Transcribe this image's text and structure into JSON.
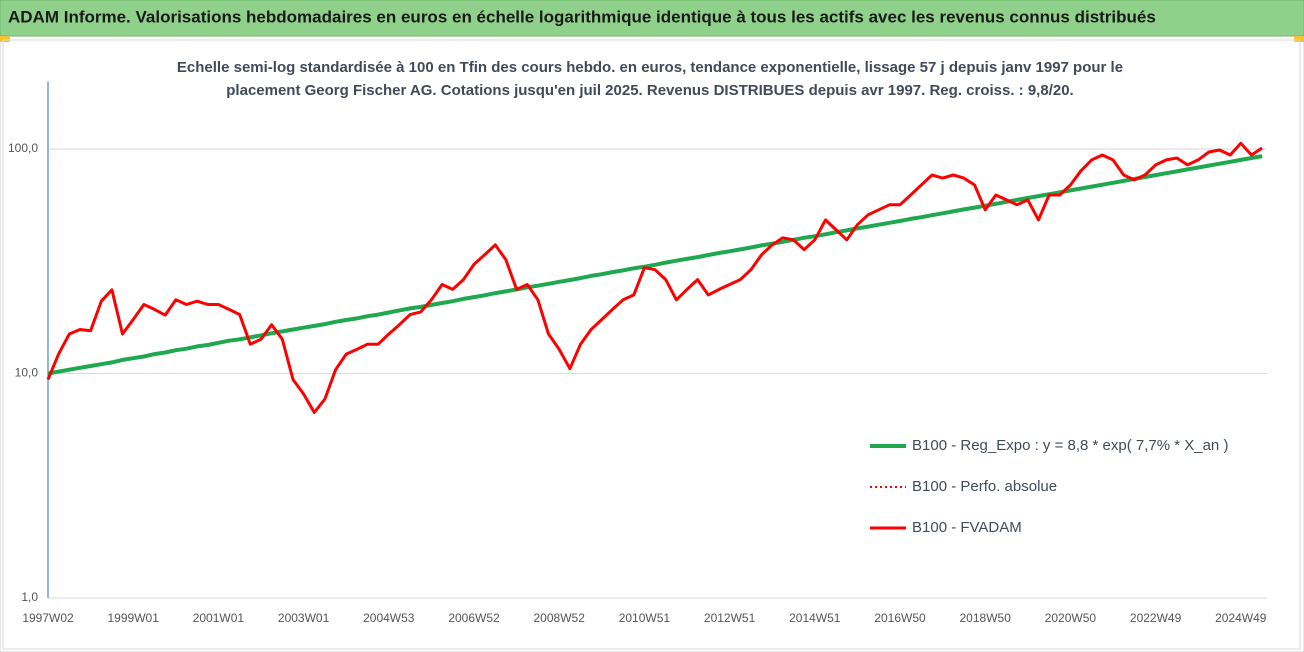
{
  "chart_data": {
    "type": "line",
    "title": "ADAM Informe. Valorisations hebdomadaires en euros en échelle logarithmique identique à tous les actifs avec les revenus connus distribués",
    "subtitle": [
      "Echelle semi-log standardisée à 100 en Tfin des cours hebdo. en euros, tendance exponentielle, lissage 57 j depuis janv 1997 pour le",
      "placement Georg Fischer AG. Cotations jusqu'en juil 2025.  Revenus DISTRIBUES depuis avr 1997. Reg. croiss. : 9,8/20."
    ],
    "log_scale": true,
    "grid": true,
    "legend": "lower-right",
    "ylim": [
      1,
      200
    ],
    "yticks": [
      {
        "value": 1,
        "label": "1,0"
      },
      {
        "value": 10,
        "label": "10,0"
      },
      {
        "value": 100,
        "label": "100,0"
      }
    ],
    "categories": [
      "1997W02",
      null,
      null,
      null,
      null,
      null,
      null,
      null,
      "1999W01",
      null,
      null,
      null,
      null,
      null,
      null,
      null,
      "2001W01",
      null,
      null,
      null,
      null,
      null,
      null,
      null,
      "2003W01",
      null,
      null,
      null,
      null,
      null,
      null,
      null,
      "2004W53",
      null,
      null,
      null,
      null,
      null,
      null,
      null,
      "2006W52",
      null,
      null,
      null,
      null,
      null,
      null,
      null,
      "2008W52",
      null,
      null,
      null,
      null,
      null,
      null,
      null,
      "2010W51",
      null,
      null,
      null,
      null,
      null,
      null,
      null,
      "2012W51",
      null,
      null,
      null,
      null,
      null,
      null,
      null,
      "2014W51",
      null,
      null,
      null,
      null,
      null,
      null,
      null,
      "2016W50",
      null,
      null,
      null,
      null,
      null,
      null,
      null,
      "2018W50",
      null,
      null,
      null,
      null,
      null,
      null,
      null,
      "2020W50",
      null,
      null,
      null,
      null,
      null,
      null,
      null,
      "2022W49",
      null,
      null,
      null,
      null,
      null,
      null,
      null,
      "2024W49",
      null,
      null
    ],
    "series": [
      {
        "name": "B100 - Reg_Expo : y = 8,8 * exp( 7,7% *  X_an )",
        "color": "#1fa84f",
        "line_style": "solid",
        "width": 4,
        "values": [
          10.0,
          10.2,
          10.4,
          10.6,
          10.8,
          11.0,
          11.2,
          11.5,
          11.7,
          11.9,
          12.2,
          12.4,
          12.7,
          12.9,
          13.2,
          13.4,
          13.7,
          14.0,
          14.2,
          14.5,
          14.8,
          15.1,
          15.4,
          15.7,
          16.0,
          16.3,
          16.6,
          17.0,
          17.3,
          17.6,
          18.0,
          18.3,
          18.7,
          19.1,
          19.5,
          19.8,
          20.2,
          20.6,
          21.0,
          21.5,
          21.9,
          22.3,
          22.8,
          23.2,
          23.7,
          24.2,
          24.6,
          25.1,
          25.6,
          26.1,
          26.6,
          27.2,
          27.7,
          28.3,
          28.8,
          29.4,
          29.9,
          30.5,
          31.2,
          31.8,
          32.4,
          33.0,
          33.7,
          34.4,
          35.0,
          35.7,
          36.4,
          37.2,
          37.9,
          38.6,
          39.4,
          40.2,
          40.9,
          41.7,
          42.6,
          43.4,
          44.3,
          45.1,
          46.0,
          46.9,
          47.8,
          48.8,
          49.7,
          50.7,
          51.7,
          52.7,
          53.8,
          54.8,
          55.9,
          57.0,
          58.2,
          59.3,
          60.5,
          61.7,
          62.9,
          64.1,
          65.4,
          66.7,
          68.0,
          69.3,
          70.7,
          72.1,
          73.5,
          75.0,
          76.5,
          78.0,
          79.5,
          81.1,
          82.7,
          84.3,
          86.0,
          87.7,
          89.4,
          91.2,
          93.0
        ]
      },
      {
        "name": "B100 - Perfo. absolue",
        "color": "#ff0000",
        "line_style": "dotted",
        "width": 2,
        "values": [
          9.4,
          12.2,
          15.0,
          15.7,
          15.5,
          21.0,
          23.6,
          15.0,
          17.4,
          20.3,
          19.3,
          18.2,
          21.3,
          20.3,
          21.0,
          20.3,
          20.3,
          19.3,
          18.3,
          13.5,
          14.2,
          16.5,
          14.2,
          9.4,
          8.1,
          6.7,
          7.7,
          10.4,
          12.2,
          12.8,
          13.5,
          13.5,
          15.0,
          16.5,
          18.3,
          18.8,
          21.3,
          24.9,
          23.7,
          26.2,
          30.6,
          33.8,
          37.4,
          32.1,
          23.7,
          24.9,
          21.3,
          15.0,
          12.8,
          10.5,
          13.5,
          15.7,
          17.4,
          19.3,
          21.3,
          22.4,
          29.6,
          29.0,
          26.2,
          21.3,
          23.7,
          26.2,
          22.4,
          23.7,
          24.9,
          26.2,
          29.0,
          33.8,
          37.4,
          40.2,
          39.4,
          35.6,
          39.4,
          48.3,
          43.6,
          39.4,
          46.0,
          50.9,
          53.6,
          56.4,
          56.4,
          62.4,
          69.1,
          76.6,
          74.2,
          76.6,
          74.2,
          69.1,
          53.6,
          62.4,
          59.3,
          56.4,
          59.3,
          48.3,
          62.4,
          62.4,
          69.1,
          80.0,
          89.4,
          94.0,
          89.4,
          76.6,
          72.8,
          76.6,
          84.9,
          89.4,
          91.2,
          84.9,
          89.4,
          97.0,
          99.0,
          94.0,
          106,
          94.0,
          101
        ]
      },
      {
        "name": "B100 - FVADAM",
        "color": "#ff0000",
        "line_style": "solid",
        "width": 3,
        "values": [
          9.4,
          12.2,
          15.0,
          15.7,
          15.5,
          21.0,
          23.6,
          15.0,
          17.4,
          20.3,
          19.3,
          18.2,
          21.3,
          20.3,
          21.0,
          20.3,
          20.3,
          19.3,
          18.3,
          13.5,
          14.2,
          16.5,
          14.2,
          9.4,
          8.1,
          6.7,
          7.7,
          10.4,
          12.2,
          12.8,
          13.5,
          13.5,
          15.0,
          16.5,
          18.3,
          18.8,
          21.3,
          24.9,
          23.7,
          26.2,
          30.6,
          33.8,
          37.4,
          32.1,
          23.7,
          24.9,
          21.3,
          15.0,
          12.8,
          10.5,
          13.5,
          15.7,
          17.4,
          19.3,
          21.3,
          22.4,
          29.6,
          29.0,
          26.2,
          21.3,
          23.7,
          26.2,
          22.4,
          23.7,
          24.9,
          26.2,
          29.0,
          33.8,
          37.4,
          40.2,
          39.4,
          35.6,
          39.4,
          48.3,
          43.6,
          39.4,
          46.0,
          50.9,
          53.6,
          56.4,
          56.4,
          62.4,
          69.1,
          76.6,
          74.2,
          76.6,
          74.2,
          69.1,
          53.6,
          62.4,
          59.3,
          56.4,
          59.3,
          48.3,
          62.4,
          62.4,
          69.1,
          80.0,
          89.4,
          94.0,
          89.4,
          76.6,
          72.8,
          76.6,
          84.9,
          89.4,
          91.2,
          84.9,
          89.4,
          97.0,
          99.0,
          94.0,
          106,
          94.0,
          101
        ]
      }
    ]
  }
}
